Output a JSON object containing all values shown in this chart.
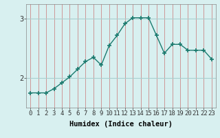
{
  "xlabel": "Humidex (Indice chaleur)",
  "x": [
    0,
    1,
    2,
    3,
    4,
    5,
    6,
    7,
    8,
    9,
    10,
    11,
    12,
    13,
    14,
    15,
    16,
    17,
    18,
    19,
    20,
    21,
    22,
    23
  ],
  "y": [
    1.75,
    1.75,
    1.75,
    1.82,
    1.92,
    2.02,
    2.15,
    2.28,
    2.35,
    2.22,
    2.55,
    2.72,
    2.92,
    3.02,
    3.02,
    3.02,
    2.72,
    2.42,
    2.57,
    2.57,
    2.47,
    2.47,
    2.47,
    2.32
  ],
  "line_color": "#1a7a6e",
  "marker": "+",
  "bg_color": "#d8f0f0",
  "grid_color": "#aacfcf",
  "ylim": [
    1.5,
    3.25
  ],
  "yticks": [
    2,
    3
  ],
  "xlim": [
    -0.5,
    23.5
  ],
  "tick_label_size": 6.5,
  "xlabel_size": 7.5
}
